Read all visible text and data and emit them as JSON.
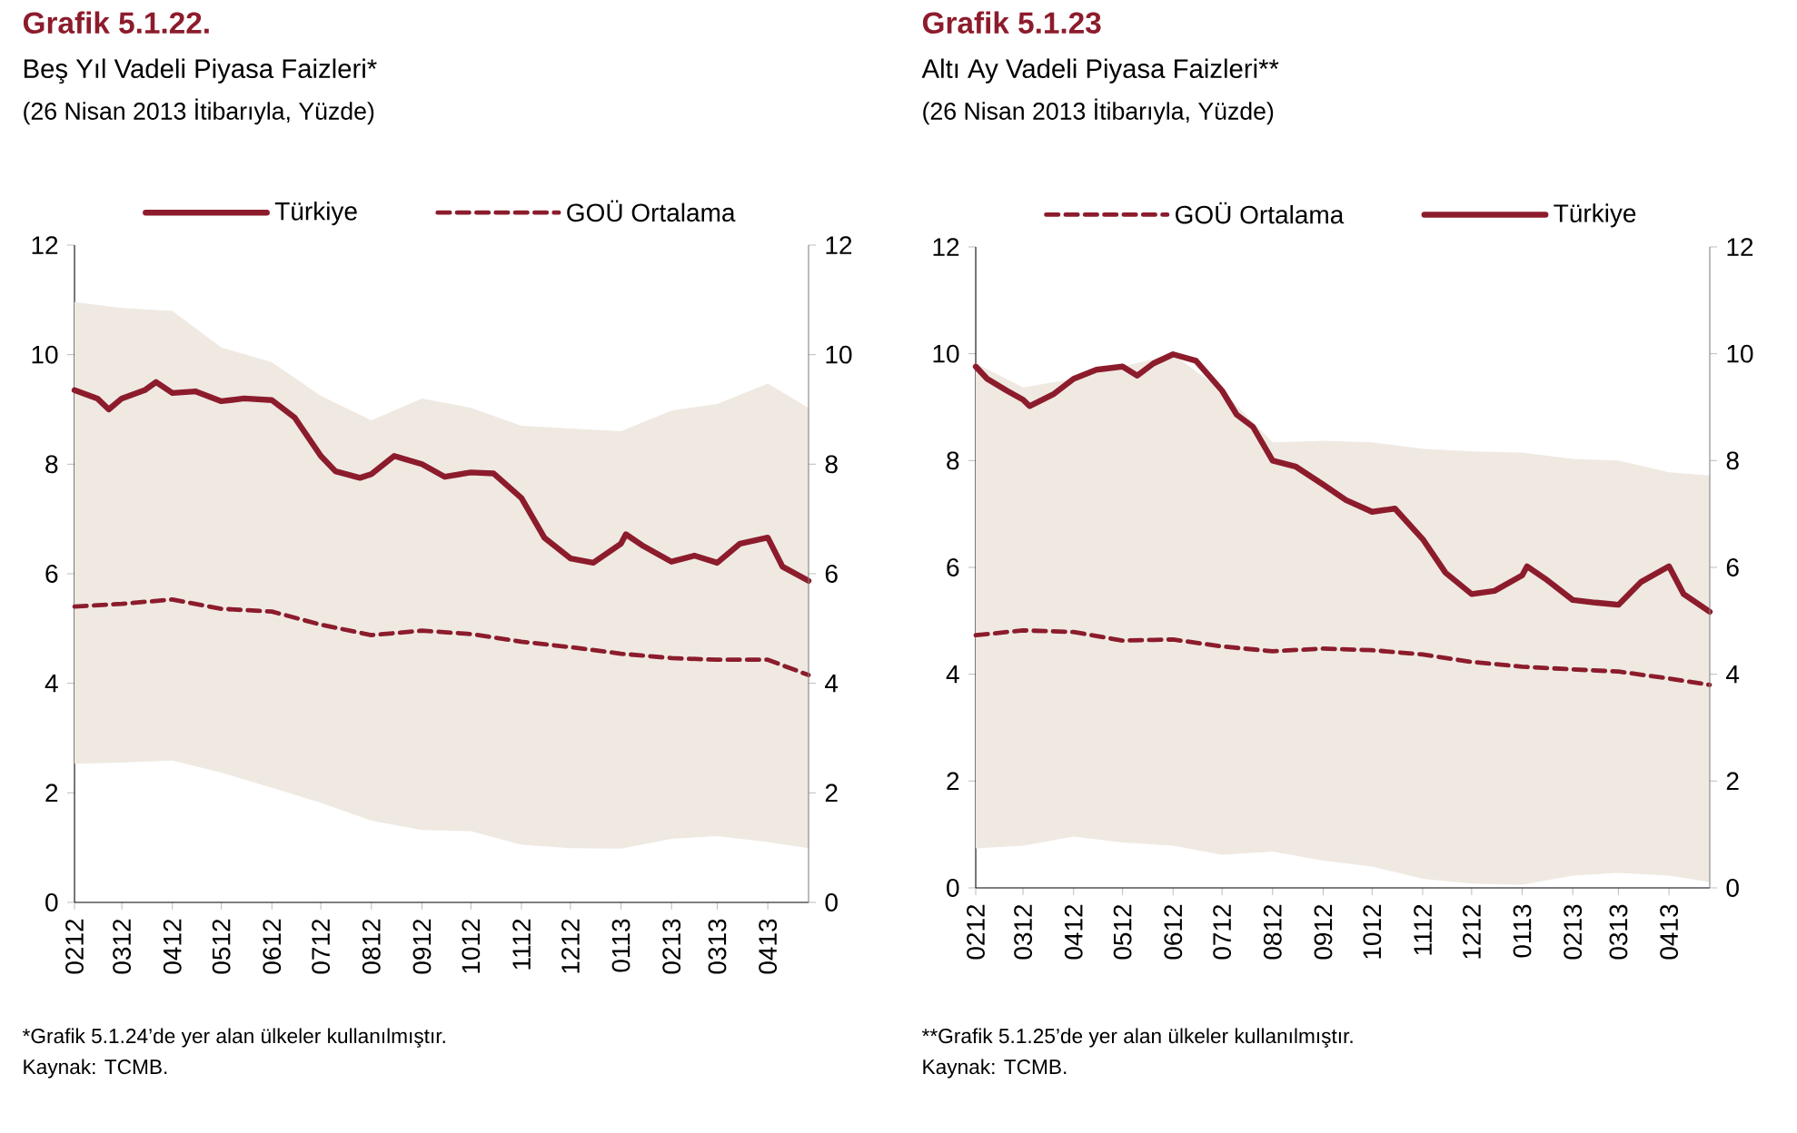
{
  "chart_data": [
    {
      "type": "line",
      "title": "Grafik 5.1.22.",
      "subtitle": "Beş Yıl Vadeli Piyasa Faizleri*",
      "annotations": [
        "(26 Nisan 2013 İtibarıyla, Yüzde)",
        "*Grafik 5.1.24’de yer alan ülkeler kullanılmıştır.",
        "Kaynak: TCMB."
      ],
      "xlim": [
        "2012-02-01",
        "2013-04-26"
      ],
      "xticks": [
        {
          "value": "2012-02-01",
          "label": "0212"
        },
        {
          "value": "2012-03-01",
          "label": "0312"
        },
        {
          "value": "2012-04-01",
          "label": "0412"
        },
        {
          "value": "2012-05-01",
          "label": "0512"
        },
        {
          "value": "2012-06-01",
          "label": "0612"
        },
        {
          "value": "2012-07-01",
          "label": "0712"
        },
        {
          "value": "2012-08-01",
          "label": "0812"
        },
        {
          "value": "2012-09-01",
          "label": "0912"
        },
        {
          "value": "2012-10-01",
          "label": "1012"
        },
        {
          "value": "2012-11-01",
          "label": "1112"
        },
        {
          "value": "2012-12-01",
          "label": "1212"
        },
        {
          "value": "2013-01-01",
          "label": "0113"
        },
        {
          "value": "2013-02-01",
          "label": "0213"
        },
        {
          "value": "2013-03-01",
          "label": "0313"
        },
        {
          "value": "2013-04-01",
          "label": "0413"
        }
      ],
      "ylim": [
        0,
        12
      ],
      "yticks": [
        0,
        2,
        4,
        6,
        8,
        10,
        12
      ],
      "y2lim": [
        0,
        12
      ],
      "y2ticks": [
        0,
        2,
        4,
        6,
        8,
        10,
        12
      ],
      "legend": "top",
      "series": [
        {
          "name": "Türkiye",
          "color": "#8c1c2c",
          "line_style": "solid",
          "x": [
            "2012-02-01",
            "2012-02-15",
            "2012-02-22",
            "2012-03-01",
            "2012-03-15",
            "2012-03-22",
            "2012-04-01",
            "2012-04-15",
            "2012-05-01",
            "2012-05-15",
            "2012-06-01",
            "2012-06-15",
            "2012-07-01",
            "2012-07-10",
            "2012-07-25",
            "2012-08-01",
            "2012-08-15",
            "2012-09-01",
            "2012-09-15",
            "2012-10-01",
            "2012-10-15",
            "2012-11-01",
            "2012-11-15",
            "2012-12-01",
            "2012-12-15",
            "2013-01-01",
            "2013-01-04",
            "2013-01-15",
            "2013-02-01",
            "2013-02-15",
            "2013-03-01",
            "2013-03-15",
            "2013-04-01",
            "2013-04-10",
            "2013-04-26"
          ],
          "values": [
            9.35,
            9.2,
            9.0,
            9.2,
            9.35,
            9.5,
            9.3,
            9.33,
            9.15,
            9.2,
            9.17,
            8.85,
            8.15,
            7.87,
            7.75,
            7.82,
            8.15,
            8.0,
            7.77,
            7.85,
            7.83,
            7.38,
            6.66,
            6.28,
            6.2,
            6.55,
            6.72,
            6.5,
            6.22,
            6.33,
            6.2,
            6.55,
            6.66,
            6.13,
            5.87
          ]
        },
        {
          "name": "GOÜ Ortalama",
          "color": "#8c1c2c",
          "line_style": "dashed",
          "x": [
            "2012-02-01",
            "2012-03-01",
            "2012-04-01",
            "2012-05-01",
            "2012-06-01",
            "2012-07-01",
            "2012-08-01",
            "2012-09-01",
            "2012-10-01",
            "2012-11-01",
            "2012-12-01",
            "2013-01-01",
            "2013-02-01",
            "2013-03-01",
            "2013-04-01",
            "2013-04-26"
          ],
          "values": [
            5.4,
            5.45,
            5.53,
            5.36,
            5.31,
            5.07,
            4.88,
            4.96,
            4.9,
            4.76,
            4.66,
            4.54,
            4.46,
            4.43,
            4.43,
            4.15
          ],
          "lower": [
            2.53,
            2.55,
            2.59,
            2.37,
            2.09,
            1.82,
            1.49,
            1.32,
            1.3,
            1.05,
            0.99,
            0.98,
            1.16,
            1.21,
            1.1,
            0.99
          ],
          "upper": [
            10.96,
            10.85,
            10.8,
            10.13,
            9.86,
            9.25,
            8.8,
            9.2,
            9.03,
            8.7,
            8.65,
            8.6,
            8.98,
            9.1,
            9.47,
            9.03
          ]
        }
      ]
    },
    {
      "type": "line",
      "title": "Grafik 5.1.23",
      "subtitle": "Altı Ay Vadeli Piyasa Faizleri**",
      "annotations": [
        "(26 Nisan 2013 İtibarıyla, Yüzde)",
        "**Grafik 5.1.25’de yer alan ülkeler kullanılmıştır.",
        "Kaynak: TCMB."
      ],
      "xlim": [
        "2012-02-01",
        "2013-04-26"
      ],
      "xticks": [
        {
          "value": "2012-02-01",
          "label": "0212"
        },
        {
          "value": "2012-03-01",
          "label": "0312"
        },
        {
          "value": "2012-04-01",
          "label": "0412"
        },
        {
          "value": "2012-05-01",
          "label": "0512"
        },
        {
          "value": "2012-06-01",
          "label": "0612"
        },
        {
          "value": "2012-07-01",
          "label": "0712"
        },
        {
          "value": "2012-08-01",
          "label": "0812"
        },
        {
          "value": "2012-09-01",
          "label": "0912"
        },
        {
          "value": "2012-10-01",
          "label": "1012"
        },
        {
          "value": "2012-11-01",
          "label": "1112"
        },
        {
          "value": "2012-12-01",
          "label": "1212"
        },
        {
          "value": "2013-01-01",
          "label": "0113"
        },
        {
          "value": "2013-02-01",
          "label": "0213"
        },
        {
          "value": "2013-03-01",
          "label": "0313"
        },
        {
          "value": "2013-04-01",
          "label": "0413"
        }
      ],
      "ylim": [
        0,
        12
      ],
      "yticks": [
        0,
        2,
        4,
        6,
        8,
        10,
        12
      ],
      "y2lim": [
        0,
        12
      ],
      "y2ticks": [
        0,
        2,
        4,
        6,
        8,
        10,
        12
      ],
      "legend": "top",
      "series": [
        {
          "name": "GOÜ Ortalama",
          "color": "#8c1c2c",
          "line_style": "dashed",
          "x": [
            "2012-02-01",
            "2012-03-01",
            "2012-04-01",
            "2012-05-01",
            "2012-06-01",
            "2012-07-01",
            "2012-08-01",
            "2012-09-01",
            "2012-10-01",
            "2012-11-01",
            "2012-12-01",
            "2013-01-01",
            "2013-02-01",
            "2013-03-01",
            "2013-04-01",
            "2013-04-26"
          ],
          "values": [
            4.73,
            4.82,
            4.79,
            4.63,
            4.65,
            4.52,
            4.43,
            4.48,
            4.45,
            4.37,
            4.23,
            4.14,
            4.09,
            4.05,
            3.92,
            3.8
          ],
          "lower": [
            0.74,
            0.79,
            0.96,
            0.85,
            0.79,
            0.62,
            0.68,
            0.51,
            0.4,
            0.17,
            0.08,
            0.06,
            0.23,
            0.28,
            0.23,
            0.11
          ],
          "upper": [
            9.82,
            9.37,
            9.53,
            9.76,
            9.99,
            9.31,
            8.34,
            8.37,
            8.34,
            8.22,
            8.17,
            8.15,
            8.03,
            8.0,
            7.78,
            7.72
          ]
        },
        {
          "name": "Türkiye",
          "color": "#8c1c2c",
          "line_style": "solid",
          "x": [
            "2012-02-01",
            "2012-02-08",
            "2012-02-20",
            "2012-03-01",
            "2012-03-05",
            "2012-03-20",
            "2012-04-01",
            "2012-04-15",
            "2012-05-01",
            "2012-05-10",
            "2012-05-20",
            "2012-06-01",
            "2012-06-15",
            "2012-07-01",
            "2012-07-10",
            "2012-07-20",
            "2012-08-01",
            "2012-08-15",
            "2012-09-01",
            "2012-09-15",
            "2012-10-01",
            "2012-10-15",
            "2012-11-01",
            "2012-11-15",
            "2012-12-01",
            "2012-12-15",
            "2013-01-01",
            "2013-01-04",
            "2013-01-15",
            "2013-02-01",
            "2013-02-15",
            "2013-03-01",
            "2013-03-15",
            "2013-04-01",
            "2013-04-10",
            "2013-04-26"
          ],
          "values": [
            9.76,
            9.53,
            9.31,
            9.14,
            9.02,
            9.25,
            9.53,
            9.7,
            9.76,
            9.59,
            9.82,
            9.99,
            9.87,
            9.31,
            8.86,
            8.63,
            8.0,
            7.89,
            7.55,
            7.26,
            7.04,
            7.1,
            6.53,
            5.9,
            5.5,
            5.56,
            5.85,
            6.02,
            5.79,
            5.39,
            5.34,
            5.3,
            5.73,
            6.02,
            5.5,
            5.17
          ]
        }
      ]
    }
  ]
}
